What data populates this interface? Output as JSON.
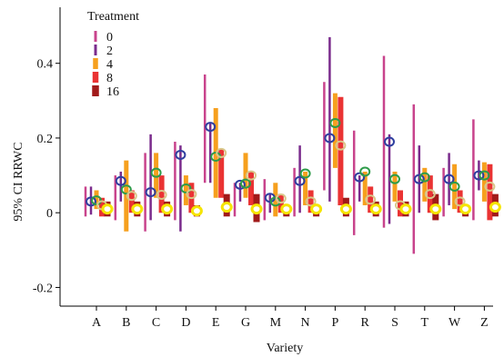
{
  "chart_data": {
    "type": "error-bar",
    "xlabel": "Variety",
    "ylabel": "95% CI RRWC",
    "ylim": [
      -0.25,
      0.55
    ],
    "yticks": [
      -0.2,
      0,
      0.2,
      0.4
    ],
    "ytick_labels": [
      "-0.2",
      "0",
      "0.2",
      "0.4"
    ],
    "categories": [
      "A",
      "B",
      "C",
      "D",
      "E",
      "G",
      "M",
      "N",
      "P",
      "R",
      "S",
      "T",
      "W",
      "Z"
    ],
    "legend": {
      "title": "Treatment",
      "position": "top-left"
    },
    "series": [
      {
        "name": "0",
        "color": "#c8438c",
        "marker": "none",
        "mean": [
          0.03,
          0.04,
          0.06,
          0.08,
          0.24,
          0.04,
          0.04,
          0.06,
          0.06,
          0.09,
          0.16,
          0.09,
          0.05,
          0.11
        ],
        "lower": [
          -0.01,
          -0.02,
          -0.05,
          -0.02,
          0.08,
          -0.01,
          -0.02,
          -0.01,
          0.06,
          -0.06,
          -0.04,
          -0.11,
          -0.01,
          -0.02
        ],
        "upper": [
          0.07,
          0.1,
          0.16,
          0.19,
          0.37,
          0.08,
          0.09,
          0.12,
          0.35,
          0.22,
          0.42,
          0.29,
          0.12,
          0.25
        ]
      },
      {
        "name": "2",
        "color": "#7a2b8c",
        "marker": "#2f3f9f",
        "mean": [
          0.03,
          0.085,
          0.055,
          0.155,
          0.23,
          0.075,
          0.04,
          0.085,
          0.2,
          0.095,
          0.19,
          0.09,
          0.09,
          0.1
        ],
        "lower": [
          -0.005,
          0.03,
          -0.02,
          -0.05,
          0.08,
          0.03,
          0.0,
          0.0,
          0.03,
          0.03,
          -0.03,
          0.0,
          0.02,
          0.06
        ],
        "upper": [
          0.07,
          0.11,
          0.21,
          0.18,
          0.24,
          0.08,
          0.05,
          0.18,
          0.47,
          0.1,
          0.21,
          0.18,
          0.16,
          0.14
        ]
      },
      {
        "name": "4",
        "color": "#f6a01e",
        "marker": "#2e9c4a",
        "mean": [
          0.033,
          0.062,
          0.107,
          0.065,
          0.15,
          0.078,
          0.03,
          0.105,
          0.24,
          0.11,
          0.09,
          0.095,
          0.07,
          0.1
        ],
        "lower": [
          0.01,
          -0.05,
          0.04,
          0.02,
          0.04,
          0.04,
          -0.01,
          0.02,
          0.12,
          0.02,
          0.03,
          0.03,
          0.01,
          0.03
        ],
        "upper": [
          0.06,
          0.14,
          0.16,
          0.1,
          0.28,
          0.16,
          0.08,
          0.11,
          0.32,
          0.11,
          0.11,
          0.12,
          0.13,
          0.135
        ]
      },
      {
        "name": "8",
        "color": "#ea3333",
        "marker": "#d9c78a",
        "mean": [
          0.02,
          0.045,
          0.048,
          0.05,
          0.16,
          0.1,
          0.038,
          0.03,
          0.18,
          0.035,
          0.02,
          0.05,
          0.03,
          0.07
        ],
        "lower": [
          -0.01,
          0.0,
          0.0,
          0.0,
          0.04,
          0.02,
          0.0,
          0.0,
          0.02,
          0.0,
          -0.01,
          0.0,
          0.0,
          -0.02
        ],
        "upper": [
          0.04,
          0.06,
          0.1,
          0.08,
          0.17,
          0.11,
          0.05,
          0.06,
          0.31,
          0.07,
          0.06,
          0.1,
          0.06,
          0.13
        ]
      },
      {
        "name": "16",
        "color": "#a11a1a",
        "marker": "#f5e400",
        "mean": [
          0.01,
          0.01,
          0.01,
          0.005,
          0.015,
          0.01,
          0.01,
          0.01,
          0.01,
          0.01,
          0.01,
          0.01,
          0.01,
          0.015
        ],
        "lower": [
          -0.01,
          -0.01,
          -0.01,
          -0.01,
          -0.01,
          -0.025,
          -0.01,
          -0.01,
          -0.01,
          -0.01,
          -0.01,
          -0.02,
          -0.01,
          -0.01
        ],
        "upper": [
          0.03,
          0.03,
          0.03,
          0.02,
          0.05,
          0.05,
          0.02,
          0.02,
          0.04,
          0.03,
          0.03,
          0.05,
          0.02,
          0.05
        ]
      }
    ]
  }
}
